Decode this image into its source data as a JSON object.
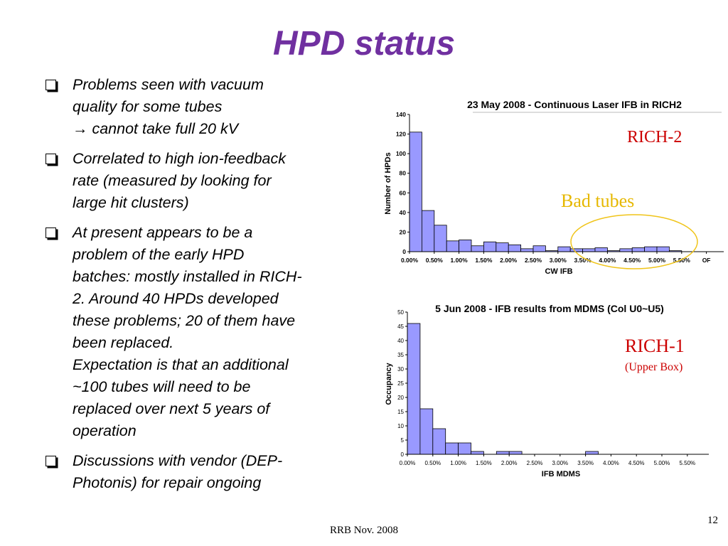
{
  "slide": {
    "title": "HPD status",
    "footer": "RRB Nov. 2008",
    "page_number": "12"
  },
  "bullets": [
    {
      "lines": [
        "Problems seen with vacuum",
        "quality for some tubes",
        "→ cannot take full 20 kV"
      ]
    },
    {
      "lines": [
        "Correlated to high ion-feedback",
        "rate (measured by looking for",
        "large hit clusters)"
      ]
    },
    {
      "lines": [
        "At present appears to be a",
        "problem of the early HPD",
        "batches: mostly installed in RICH-",
        "2. Around 40 HPDs developed",
        "these problems; 20 of them have",
        "been replaced.",
        "Expectation is that an additional",
        "~100 tubes will need to be",
        "replaced over next 5 years of",
        "operation"
      ]
    },
    {
      "lines": [
        "Discussions with vendor (DEP-",
        "Photonis) for repair ongoing"
      ]
    }
  ],
  "annotations": {
    "rich2_label": "RICH-2",
    "bad_tubes_label": "Bad tubes",
    "rich1_label": "RICH-1",
    "rich1_sublabel": "(Upper Box)",
    "rich2_color": "#cc0000",
    "bad_tubes_color": "#e6b800",
    "rich1_color": "#cc0000"
  },
  "chart_data": [
    {
      "type": "bar",
      "title": "23 May 2008 - Continuous Laser IFB in RICH2",
      "xlabel": "CW IFB",
      "ylabel": "Number of HPDs",
      "ylim": [
        0,
        140
      ],
      "yticks": [
        0,
        20,
        40,
        60,
        80,
        100,
        120,
        140
      ],
      "xticks": [
        "0.00%",
        "0.50%",
        "1.00%",
        "1.50%",
        "2.00%",
        "2.50%",
        "3.00%",
        "3.50%",
        "4.00%",
        "4.50%",
        "5.00%",
        "5.50%",
        "OF"
      ],
      "values": [
        122,
        42,
        27,
        11,
        12,
        6,
        10,
        9,
        7,
        3,
        6,
        1,
        5,
        3,
        3,
        4,
        1,
        3,
        4,
        5,
        5,
        1,
        0,
        0
      ],
      "bar_color": "#9999ff",
      "grid": false
    },
    {
      "type": "bar",
      "title": "5 Jun 2008 - IFB results from MDMS (Col U0~U5)",
      "xlabel": "IFB MDMS",
      "ylabel": "Occupancy",
      "ylim": [
        0,
        50
      ],
      "yticks": [
        0,
        5,
        10,
        15,
        20,
        25,
        30,
        35,
        40,
        45,
        50
      ],
      "xticks": [
        "0.00%",
        "0.50%",
        "1.00%",
        "1.50%",
        "2.00%",
        "2.50%",
        "3.00%",
        "3.50%",
        "4.00%",
        "4.50%",
        "5.00%",
        "5.50%"
      ],
      "values": [
        46,
        16,
        9,
        4,
        4,
        1,
        0,
        1,
        1,
        0,
        0,
        0,
        0,
        0,
        1,
        0,
        0,
        0,
        0,
        0,
        0,
        0
      ],
      "bar_color": "#9999ff",
      "grid": false
    }
  ]
}
